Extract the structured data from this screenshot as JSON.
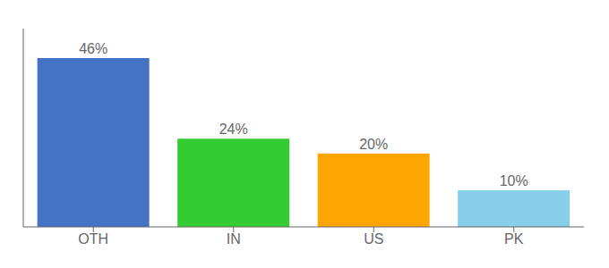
{
  "chart_data": {
    "type": "bar",
    "categories": [
      "OTH",
      "IN",
      "US",
      "PK"
    ],
    "values": [
      46,
      24,
      20,
      10
    ],
    "value_labels": [
      "46%",
      "24%",
      "20%",
      "10%"
    ],
    "colors": [
      "#4472C4",
      "#33CC33",
      "#FFA500",
      "#87CEEB"
    ],
    "ylim": [
      0,
      54
    ],
    "tick_labels": "x",
    "data_labels": true,
    "grid": false
  }
}
